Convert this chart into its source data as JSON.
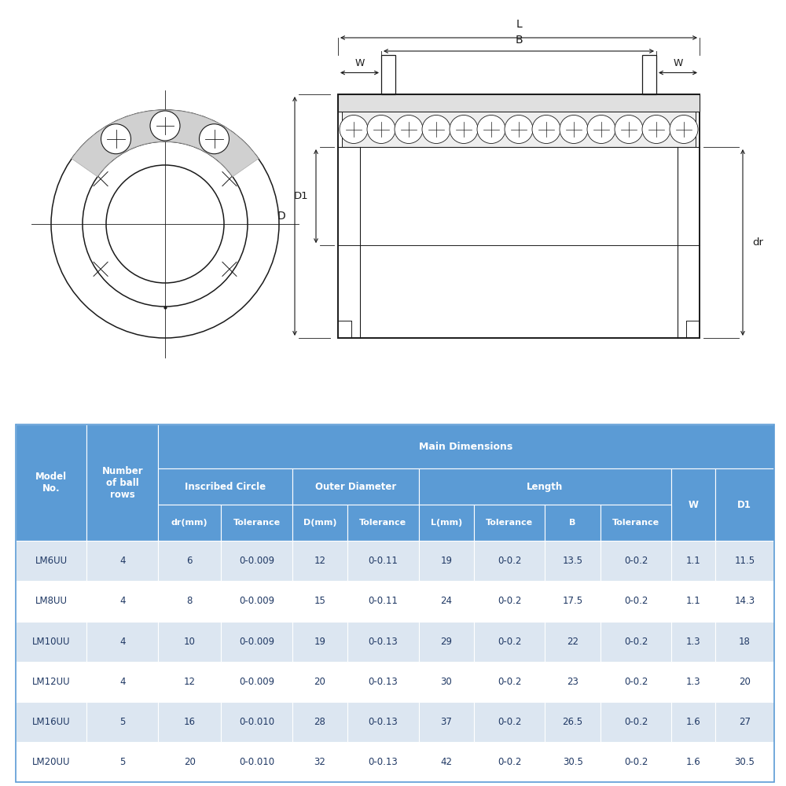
{
  "bg_color": "#ffffff",
  "table_header_bg": "#5b9bd5",
  "table_data_bg_light": "#dce6f1",
  "table_data_bg_white": "#ffffff",
  "table_text_color": "#1f3864",
  "rows": [
    [
      "LM6UU",
      "4",
      "6",
      "0-0.009",
      "12",
      "0-0.11",
      "19",
      "0-0.2",
      "13.5",
      "0-0.2",
      "1.1",
      "11.5"
    ],
    [
      "LM8UU",
      "4",
      "8",
      "0-0.009",
      "15",
      "0-0.11",
      "24",
      "0-0.2",
      "17.5",
      "0-0.2",
      "1.1",
      "14.3"
    ],
    [
      "LM10UU",
      "4",
      "10",
      "0-0.009",
      "19",
      "0-0.13",
      "29",
      "0-0.2",
      "22",
      "0-0.2",
      "1.3",
      "18"
    ],
    [
      "LM12UU",
      "4",
      "12",
      "0-0.009",
      "20",
      "0-0.13",
      "30",
      "0-0.2",
      "23",
      "0-0.2",
      "1.3",
      "20"
    ],
    [
      "LM16UU",
      "5",
      "16",
      "0-0.010",
      "28",
      "0-0.13",
      "37",
      "0-0.2",
      "26.5",
      "0-0.2",
      "1.6",
      "27"
    ],
    [
      "LM20UU",
      "5",
      "20",
      "0-0.010",
      "32",
      "0-0.13",
      "42",
      "0-0.2",
      "30.5",
      "0-0.2",
      "1.6",
      "30.5"
    ]
  ],
  "drawing_line_color": "#1a1a1a"
}
